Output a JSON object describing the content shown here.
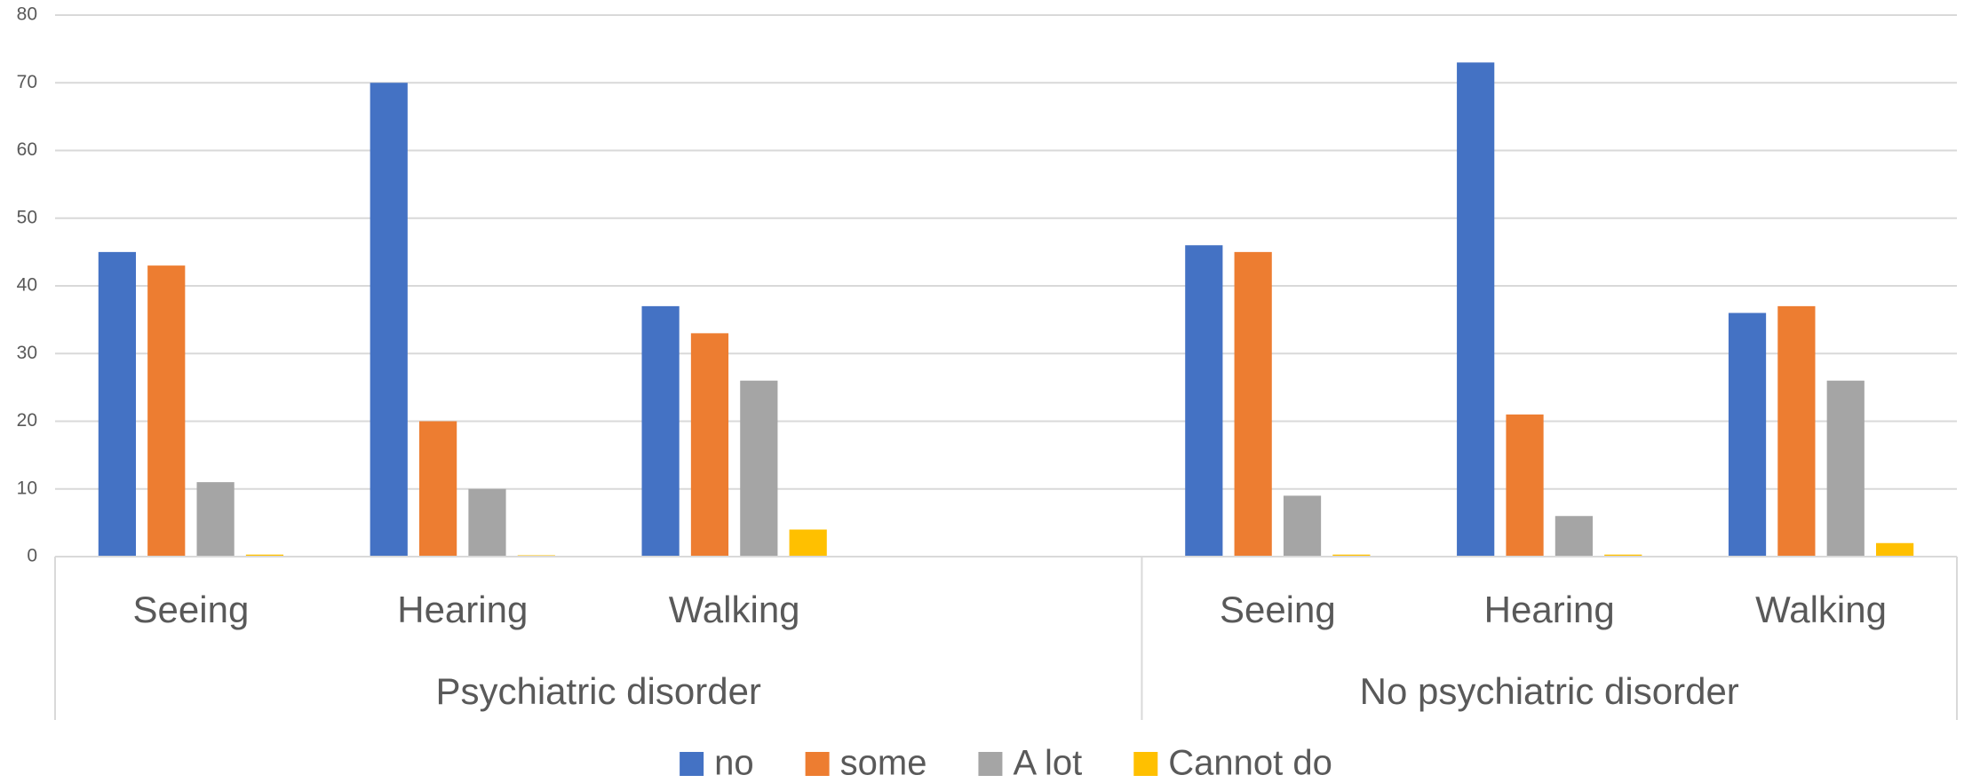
{
  "chart_data": {
    "type": "bar",
    "categories": [
      "Seeing",
      "Hearing",
      "Walking",
      null,
      "Seeing",
      "Hearing",
      "Walking"
    ],
    "groups": [
      {
        "name": "Psychiatric disorder",
        "count": 4
      },
      {
        "name": "No psychiatric disorder",
        "count": 3
      }
    ],
    "series": [
      {
        "name": "no",
        "color": "#4472c4",
        "values": [
          45,
          70,
          37,
          null,
          46,
          73,
          36
        ]
      },
      {
        "name": "some",
        "color": "#ed7d31",
        "values": [
          43,
          20,
          33,
          null,
          45,
          21,
          37
        ]
      },
      {
        "name": "A lot",
        "color": "#a5a5a5",
        "values": [
          11,
          10,
          26,
          null,
          9,
          6,
          26
        ]
      },
      {
        "name": "Cannot do",
        "color": "#ffc000",
        "values": [
          0.3,
          0.2,
          4,
          null,
          0.3,
          0.3,
          2
        ]
      }
    ],
    "ylim": [
      0,
      80
    ],
    "yticks": [
      0,
      10,
      20,
      30,
      40,
      50,
      60,
      70,
      80
    ],
    "grid": true,
    "legend": "bottom"
  }
}
